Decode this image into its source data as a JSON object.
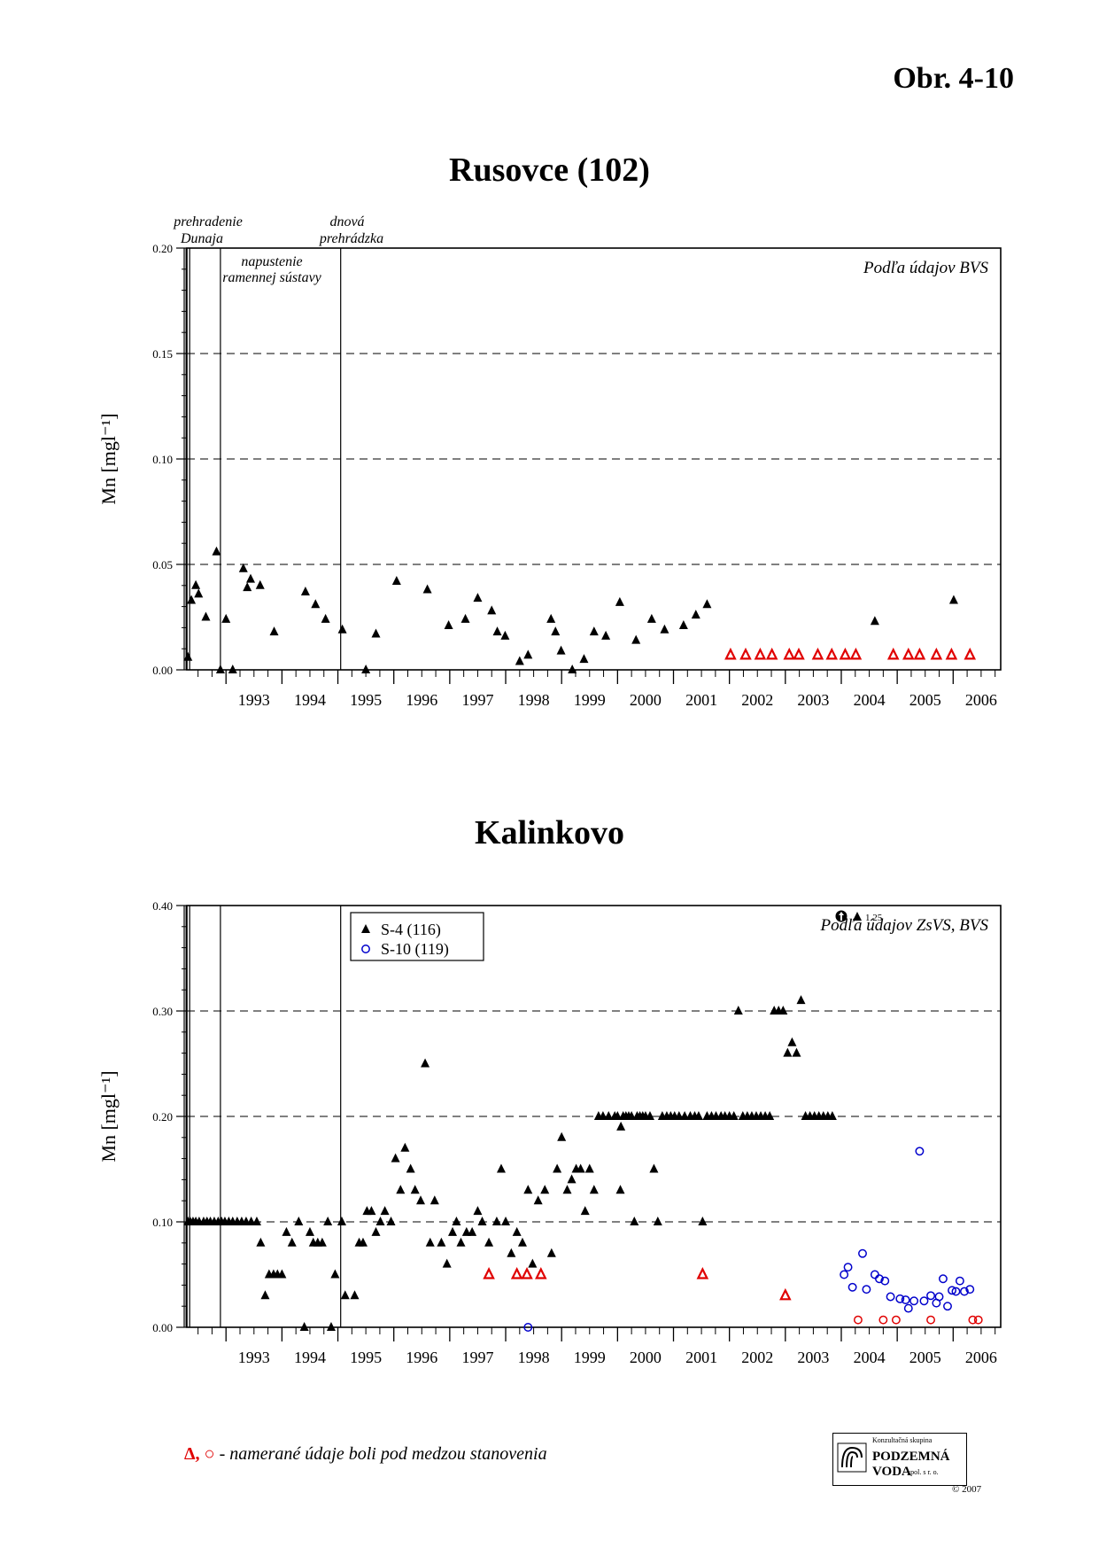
{
  "figure_id": "Obr. 4-10",
  "footer": {
    "symbols": "Δ, ○",
    "note": " - namerané údaje boli pod medzou stanovenia"
  },
  "logo": {
    "line1": "Konzultačná skupina",
    "line2": "PODZEMNÁ VODA",
    "line3": "spol. s r. o."
  },
  "copyright": "© 2007",
  "colors": {
    "measured": "#000000",
    "below_limit": "#e00000",
    "s10": "#0000cc"
  },
  "chart_data": [
    {
      "type": "scatter",
      "title": "Rusovce (102)",
      "ylabel": "Mn [mgl⁻¹]",
      "source_note": "Podľa údajov BVS",
      "xlim": [
        1992.3,
        2006.85
      ],
      "ylim": [
        0,
        0.2
      ],
      "yticks": [
        "0.00",
        "0.05",
        "0.10",
        "0.15",
        "0.20"
      ],
      "year_labels": [
        "1993",
        "1994",
        "1995",
        "1996",
        "1997",
        "1998",
        "1999",
        "2000",
        "2001",
        "2002",
        "2003",
        "2004",
        "2005",
        "2006"
      ],
      "grid": "dashed",
      "events": [
        {
          "x": 1992.35,
          "label": [
            "prehradenie",
            "Dunaja"
          ]
        },
        {
          "x": 1992.9,
          "label": [
            "napustenie",
            "ramennej sústavy"
          ]
        },
        {
          "x": 1995.05,
          "label": [
            "dnová",
            "prehrádzka"
          ]
        }
      ],
      "series": [
        {
          "marker": "triangle-filled",
          "x": [
            1992.32,
            1992.38,
            1992.46,
            1992.51,
            1992.64,
            1992.83,
            1992.9,
            1993.0,
            1993.12,
            1993.31,
            1993.38,
            1993.44,
            1993.61,
            1993.86,
            1994.42,
            1994.6,
            1994.78,
            1995.08,
            1995.5,
            1995.68,
            1996.05,
            1996.6,
            1996.98,
            1997.28,
            1997.5,
            1997.75,
            1997.85,
            1997.99,
            1998.25,
            1998.4,
            1998.81,
            1998.89,
            1998.99,
            1999.19,
            1999.4,
            1999.58,
            1999.79,
            2000.04,
            2000.33,
            2000.61,
            2000.84,
            2001.18,
            2001.4,
            2001.6
          ],
          "y": [
            0.006,
            0.033,
            0.04,
            0.036,
            0.025,
            0.056,
            0.0,
            0.024,
            0.0,
            0.048,
            0.039,
            0.043,
            0.04,
            0.018,
            0.037,
            0.031,
            0.024,
            0.019,
            0.0,
            0.017,
            0.042,
            0.038,
            0.021,
            0.024,
            0.034,
            0.028,
            0.018,
            0.016,
            0.004,
            0.007,
            0.024,
            0.018,
            0.009,
            0.0,
            0.005,
            0.018,
            0.016,
            0.032,
            0.014,
            0.024,
            0.019,
            0.021,
            0.026,
            0.031
          ]
        },
        {
          "marker": "triangle-filled",
          "x": [
            2004.6,
            2006.01
          ],
          "y": [
            0.023,
            0.033
          ]
        },
        {
          "marker": "triangle-open",
          "below_limit": true,
          "x": [
            2002.02,
            2002.29,
            2002.55,
            2002.76,
            2003.07,
            2003.24,
            2003.58,
            2003.83,
            2004.07,
            2004.26,
            2004.93,
            2005.2,
            2005.4,
            2005.7,
            2005.97,
            2006.3
          ],
          "y": [
            0.007,
            0.007,
            0.007,
            0.007,
            0.007,
            0.007,
            0.007,
            0.007,
            0.007,
            0.007,
            0.007,
            0.007,
            0.007,
            0.007,
            0.007,
            0.007
          ]
        }
      ]
    },
    {
      "type": "scatter",
      "title": "Kalinkovo",
      "ylabel": "Mn [mgl⁻¹]",
      "source_note": "Podľa údajov ZsVS, BVS",
      "xlim": [
        1992.3,
        2006.85
      ],
      "ylim": [
        0,
        0.4
      ],
      "yticks": [
        "0.00",
        "0.10",
        "0.20",
        "0.30",
        "0.40"
      ],
      "year_labels": [
        "1993",
        "1994",
        "1995",
        "1996",
        "1997",
        "1998",
        "1999",
        "2000",
        "2001",
        "2002",
        "2003",
        "2004",
        "2005",
        "2006"
      ],
      "grid": "dashed",
      "legend": {
        "position": "top-left",
        "entries": [
          "S-4 (116)",
          "S-10 (119)"
        ]
      },
      "off_scale_note": "1.25",
      "events": [
        {
          "x": 1992.35
        },
        {
          "x": 1992.9
        },
        {
          "x": 1995.05
        }
      ],
      "series": [
        {
          "name": "S-4 (116)",
          "marker": "triangle-filled",
          "x": [
            1992.32,
            1992.36,
            1992.41,
            1992.46,
            1992.52,
            1992.6,
            1992.66,
            1992.72,
            1992.79,
            1992.86,
            1992.92,
            1992.98,
            1993.05,
            1993.12,
            1993.2,
            1993.28,
            1993.36,
            1993.45,
            1993.55,
            1993.62,
            1993.7,
            1993.77,
            1993.85,
            1993.92,
            1994.0,
            1994.08,
            1994.18,
            1994.3,
            1994.4,
            1994.5,
            1994.56,
            1994.64,
            1994.72,
            1994.82,
            1994.88,
            1994.95,
            1995.07,
            1995.13,
            1995.3,
            1995.38,
            1995.45,
            1995.52,
            1995.6,
            1995.68,
            1995.76,
            1995.84,
            1995.95,
            1996.03,
            1996.12,
            1996.2,
            1996.3,
            1996.38,
            1996.48,
            1996.56,
            1996.65,
            1996.73,
            1996.85,
            1996.95,
            1997.05,
            1997.12,
            1997.2,
            1997.3,
            1997.4,
            1997.5,
            1997.58,
            1997.7,
            1997.84,
            1997.92,
            2000.05
          ],
          "y": [
            0.1,
            0.1,
            0.1,
            0.1,
            0.1,
            0.1,
            0.1,
            0.1,
            0.1,
            0.1,
            0.1,
            0.1,
            0.1,
            0.1,
            0.1,
            0.1,
            0.1,
            0.1,
            0.1,
            0.08,
            0.03,
            0.05,
            0.05,
            0.05,
            0.05,
            0.09,
            0.08,
            0.1,
            0.0,
            0.09,
            0.08,
            0.08,
            0.08,
            0.1,
            0.0,
            0.05,
            0.1,
            0.03,
            0.03,
            0.08,
            0.08,
            0.11,
            0.11,
            0.09,
            0.1,
            0.11,
            0.1,
            0.16,
            0.13,
            0.17,
            0.15,
            0.13,
            0.12,
            0.25,
            0.08,
            0.12,
            0.08,
            0.06,
            0.09,
            0.1,
            0.08,
            0.09,
            0.09,
            0.11,
            0.1,
            0.08,
            0.1,
            0.15,
            0.13
          ]
        },
        {
          "name": "S-4 (116)",
          "marker": "triangle-filled",
          "x": [
            1998.0,
            1998.1,
            1998.2,
            1998.3,
            1998.4,
            1998.48,
            1998.58,
            1998.7,
            1998.82,
            1998.92,
            1999.0,
            1999.1,
            1999.18,
            1999.26,
            1999.34,
            1999.42,
            1999.5,
            1999.58,
            1999.66,
            1999.74,
            1999.84,
            1999.95,
            2000.0,
            2000.06,
            2000.1,
            2000.15,
            2000.2,
            2000.25,
            2000.3,
            2000.35,
            2000.4,
            2000.45,
            2000.5,
            2000.58,
            2000.65,
            2000.72,
            2000.8,
            2000.88,
            2000.95,
            2001.02,
            2001.1,
            2001.2,
            2001.3,
            2001.38,
            2001.45,
            2001.52,
            2001.6,
            2001.68,
            2001.76,
            2001.85,
            2001.92,
            2002.0,
            2002.08,
            2002.16,
            2002.24,
            2002.32,
            2002.4,
            2002.48,
            2002.56,
            2002.64,
            2002.72,
            2002.8,
            2002.88,
            2002.96,
            2003.04,
            2003.12,
            2003.2,
            2003.28,
            2003.36,
            2003.44,
            2003.52,
            2003.6,
            2003.68,
            2003.76,
            2003.84
          ],
          "y": [
            0.1,
            0.07,
            0.09,
            0.08,
            0.13,
            0.06,
            0.12,
            0.13,
            0.07,
            0.15,
            0.18,
            0.13,
            0.14,
            0.15,
            0.15,
            0.11,
            0.15,
            0.13,
            0.2,
            0.2,
            0.2,
            0.2,
            0.2,
            0.19,
            0.2,
            0.2,
            0.2,
            0.2,
            0.1,
            0.2,
            0.2,
            0.2,
            0.2,
            0.2,
            0.15,
            0.1,
            0.2,
            0.2,
            0.2,
            0.2,
            0.2,
            0.2,
            0.2,
            0.2,
            0.2,
            0.1,
            0.2,
            0.2,
            0.2,
            0.2,
            0.2,
            0.2,
            0.2,
            0.3,
            0.2,
            0.2,
            0.2,
            0.2,
            0.2,
            0.2,
            0.2,
            0.3,
            0.3,
            0.3,
            0.26,
            0.27,
            0.26,
            0.31,
            0.2,
            0.2,
            0.2,
            0.2,
            0.2,
            0.2,
            0.2
          ]
        },
        {
          "name": "S-4 (116)",
          "marker": "triangle-open",
          "below_limit": true,
          "x": [
            1997.7,
            1998.2,
            1998.38,
            1998.63,
            2001.52,
            2003.0
          ],
          "y": [
            0.05,
            0.05,
            0.05,
            0.05,
            0.05,
            0.03
          ]
        },
        {
          "name": "S-10 (119)",
          "marker": "circle-open",
          "x": [
            1998.4,
            2004.05,
            2004.12,
            2004.2,
            2004.38,
            2004.45,
            2004.6,
            2004.68,
            2004.78,
            2004.88,
            2005.05,
            2005.15,
            2005.2,
            2005.3,
            2005.4,
            2005.48,
            2005.6,
            2005.7,
            2005.75,
            2005.82,
            2005.9,
            2005.98,
            2006.05,
            2006.12,
            2006.2,
            2006.3
          ],
          "y": [
            0.0,
            0.05,
            0.057,
            0.038,
            0.07,
            0.036,
            0.05,
            0.046,
            0.044,
            0.029,
            0.027,
            0.026,
            0.018,
            0.025,
            0.167,
            0.025,
            0.03,
            0.023,
            0.029,
            0.046,
            0.02,
            0.035,
            0.034,
            0.044,
            0.034,
            0.036
          ]
        },
        {
          "name": "S-10 (119)",
          "marker": "circle-open",
          "below_limit": true,
          "x": [
            2004.3,
            2004.75,
            2004.98,
            2005.6,
            2006.35,
            2006.45
          ],
          "y": [
            0.007,
            0.007,
            0.007,
            0.007,
            0.007,
            0.007
          ]
        }
      ]
    }
  ]
}
